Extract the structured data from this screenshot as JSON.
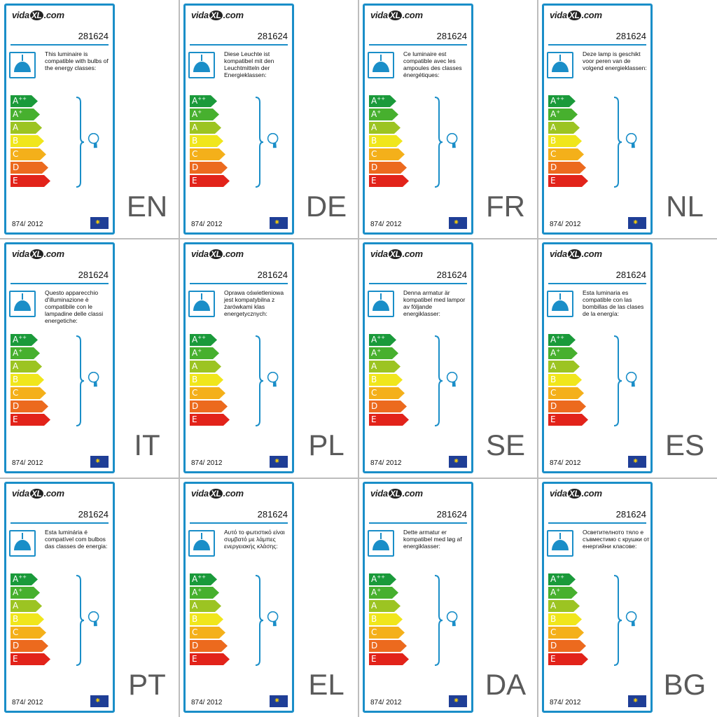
{
  "brand": {
    "pre": "vida",
    "mark": "XL",
    "post": ".com"
  },
  "model_number": "281624",
  "regulation": "874/ 2012",
  "eu_flag_stars": "⁕",
  "energy_classes": [
    {
      "letter": "A",
      "sup": "++",
      "color": "#1a9a3a"
    },
    {
      "letter": "A",
      "sup": "+",
      "color": "#47b02e"
    },
    {
      "letter": "A",
      "sup": "",
      "color": "#9cc422"
    },
    {
      "letter": "B",
      "sup": "",
      "color": "#f0e61c"
    },
    {
      "letter": "C",
      "sup": "",
      "color": "#f4b01a"
    },
    {
      "letter": "D",
      "sup": "",
      "color": "#ec6a1e"
    },
    {
      "letter": "E",
      "sup": "",
      "color": "#e2231a"
    }
  ],
  "accent_color": "#1a8ec8",
  "labels": [
    {
      "lang": "EN",
      "text": "This luminaire is compatible with bulbs of the energy classes:"
    },
    {
      "lang": "DE",
      "text": "Diese Leuchte ist kompatibel mit den Leuchtmitteln der Energieklassen:"
    },
    {
      "lang": "FR",
      "text": "Ce luminaire est compatible avec les ampoules des classes énergétiques:"
    },
    {
      "lang": "NL",
      "text": "Deze lamp is geschikt voor peren van de volgend energieklassen:"
    },
    {
      "lang": "IT",
      "text": "Questo apparecchio d'illuminazione è compatibile con le lampadine delle classi energetiche:"
    },
    {
      "lang": "PL",
      "text": "Oprawa oświetleniowa jest kompatybilna z żarówkami klas energetycznych:"
    },
    {
      "lang": "SE",
      "text": "Denna armatur är kompatibel med lampor av följande energiklasser:"
    },
    {
      "lang": "ES",
      "text": "Esta luminaria es compatible con las bombillas de las clases de la energía:"
    },
    {
      "lang": "PT",
      "text": "Esta luminária é compatível com bulbos das classes de energia:"
    },
    {
      "lang": "EL",
      "text": "Αυτό το φωτιστικό είναι συμβατό με λάμπες ενεργειακής κλάσης:"
    },
    {
      "lang": "DA",
      "text": "Dette armatur er kompatibel med løg af energiklasser:"
    },
    {
      "lang": "BG",
      "text": "Осветителното тяло е съвместимо с крушки от енергийни класове:"
    }
  ]
}
